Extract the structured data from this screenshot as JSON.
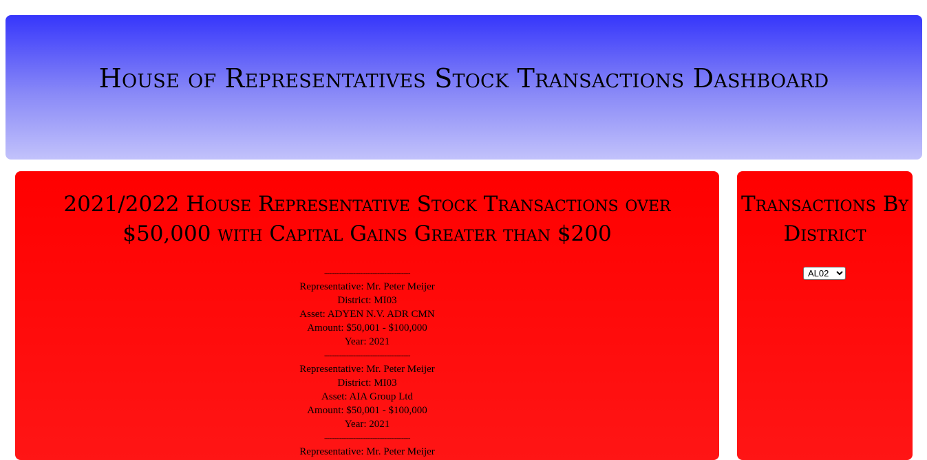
{
  "header": {
    "title": "House of Representatives Stock Transactions Dashboard"
  },
  "main": {
    "title": "2021/2022 House Representative Stock Transactions over $50,000 with Capital Gains Greater than $200",
    "divider": "--------------------------------------------------",
    "transactions": [
      {
        "representative": "Representative: Mr. Peter Meijer",
        "district": "District: MI03",
        "asset": "Asset: ADYEN N.V. ADR CMN",
        "amount": "Amount: $50,001 - $100,000",
        "year": "Year: 2021"
      },
      {
        "representative": "Representative: Mr. Peter Meijer",
        "district": "District: MI03",
        "asset": "Asset: AIA Group Ltd",
        "amount": "Amount: $50,001 - $100,000",
        "year": "Year: 2021"
      },
      {
        "representative": "Representative: Mr. Peter Meijer"
      }
    ]
  },
  "sidebar": {
    "title": "Transactions By District",
    "district_select": {
      "selected": "AL02",
      "options": [
        "AL02"
      ]
    }
  }
}
